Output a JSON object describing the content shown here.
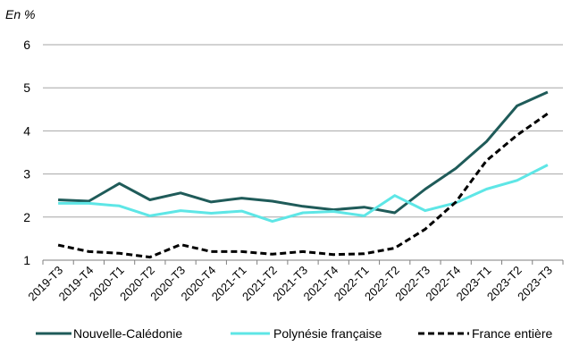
{
  "chart_data": {
    "type": "line",
    "unit_label": "En %",
    "x": [
      "2019-T3",
      "2019-T4",
      "2020-T1",
      "2020-T2",
      "2020-T3",
      "2020-T4",
      "2021-T1",
      "2021-T2",
      "2021-T3",
      "2021-T4",
      "2022-T1",
      "2022-T2",
      "2022-T3",
      "2022-T4",
      "2023-T1",
      "2023-T2",
      "2023-T3"
    ],
    "ylim": [
      1,
      6
    ],
    "yticks": [
      "1",
      "2",
      "3",
      "4",
      "5",
      "6"
    ],
    "grid": "horizontal",
    "legend_position": "bottom",
    "series": [
      {
        "name": "Nouvelle-Calédonie",
        "color": "#1f5b59",
        "style": "solid",
        "values": [
          2.4,
          2.37,
          2.78,
          2.4,
          2.56,
          2.35,
          2.44,
          2.37,
          2.25,
          2.17,
          2.23,
          2.1,
          2.65,
          3.13,
          3.75,
          4.58,
          4.9
        ]
      },
      {
        "name": "Polynésie française",
        "color": "#5ee6e6",
        "style": "solid",
        "values": [
          2.32,
          2.32,
          2.26,
          2.03,
          2.15,
          2.09,
          2.14,
          1.9,
          2.1,
          2.13,
          2.03,
          2.5,
          2.15,
          2.33,
          2.65,
          2.85,
          3.21
        ]
      },
      {
        "name": "France entière",
        "color": "#000000",
        "style": "dashed",
        "values": [
          1.35,
          1.2,
          1.16,
          1.07,
          1.36,
          1.2,
          1.2,
          1.14,
          1.2,
          1.13,
          1.15,
          1.28,
          1.72,
          2.35,
          3.31,
          3.9,
          4.4
        ]
      }
    ]
  }
}
